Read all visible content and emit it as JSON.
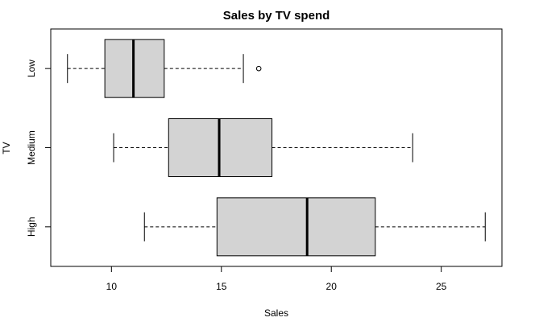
{
  "chart_data": {
    "type": "boxplot",
    "title": "Sales by TV spend",
    "x_label": "Sales",
    "y_label": "TV",
    "categories": [
      "Low",
      "Medium",
      "High"
    ],
    "min": [
      8.0,
      10.1,
      11.5
    ],
    "q1": [
      9.7,
      12.6,
      14.8
    ],
    "median": [
      11.0,
      14.9,
      18.9
    ],
    "q3": [
      12.4,
      17.3,
      22.0
    ],
    "max": [
      16.0,
      23.7,
      27.0
    ],
    "outliers": [
      [
        16.7
      ],
      [],
      []
    ],
    "color": "#d3d3d3",
    "xlim": [
      7.24,
      27.76
    ],
    "xticks": [
      10,
      15,
      20,
      25
    ]
  }
}
